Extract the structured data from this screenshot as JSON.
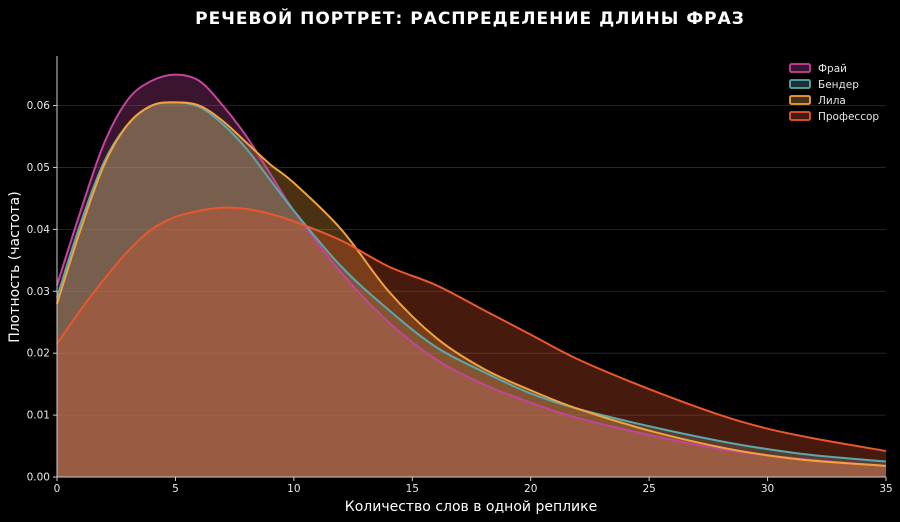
{
  "chart_data": {
    "type": "area",
    "title": "РЕЧЕВОЙ ПОРТРЕТ: РАСПРЕДЕЛЕНИЕ ДЛИНЫ ФРАЗ",
    "xlabel": "Количество слов в одной реплике",
    "ylabel": "Плотность (частота)",
    "xlim": [
      0,
      35
    ],
    "ylim": [
      0,
      0.068
    ],
    "xticks": [
      0,
      5,
      10,
      15,
      20,
      25,
      30,
      35
    ],
    "yticks": [
      0.0,
      0.01,
      0.02,
      0.03,
      0.04,
      0.05,
      0.06
    ],
    "ytick_labels": [
      "0.00",
      "0.01",
      "0.02",
      "0.03",
      "0.04",
      "0.05",
      "0.06"
    ],
    "grid": "horizontal",
    "legend_position": "top-right",
    "series": [
      {
        "name": "Фрай",
        "color": "#c2459a",
        "fill": "#c2459a",
        "x": [
          0,
          1,
          2,
          3,
          4,
          5,
          6,
          7,
          8,
          9,
          10,
          12,
          14,
          16,
          18,
          20,
          22,
          25,
          28,
          30,
          32,
          35
        ],
        "values": [
          0.031,
          0.043,
          0.054,
          0.061,
          0.064,
          0.065,
          0.064,
          0.06,
          0.055,
          0.049,
          0.043,
          0.033,
          0.025,
          0.019,
          0.015,
          0.012,
          0.0095,
          0.0068,
          0.0045,
          0.0035,
          0.0027,
          0.0018
        ]
      },
      {
        "name": "Бендер",
        "color": "#5aa8ad",
        "fill": "#5aa8ad",
        "x": [
          0,
          1,
          2,
          3,
          4,
          5,
          6,
          7,
          8,
          9,
          10,
          12,
          14,
          16,
          18,
          20,
          22,
          25,
          28,
          30,
          32,
          35
        ],
        "values": [
          0.029,
          0.041,
          0.051,
          0.057,
          0.06,
          0.0605,
          0.0598,
          0.057,
          0.053,
          0.048,
          0.043,
          0.034,
          0.027,
          0.021,
          0.017,
          0.0135,
          0.011,
          0.0082,
          0.0058,
          0.0045,
          0.0035,
          0.0025
        ]
      },
      {
        "name": "Лила",
        "color": "#f2a23c",
        "fill": "#f2a23c",
        "x": [
          0,
          1,
          2,
          3,
          4,
          5,
          6,
          7,
          8,
          9,
          10,
          12,
          14,
          16,
          18,
          20,
          22,
          25,
          28,
          30,
          32,
          35
        ],
        "values": [
          0.028,
          0.04,
          0.0505,
          0.057,
          0.06,
          0.0605,
          0.06,
          0.0575,
          0.054,
          0.0505,
          0.0475,
          0.04,
          0.03,
          0.0225,
          0.0175,
          0.014,
          0.011,
          0.0075,
          0.0048,
          0.0035,
          0.0026,
          0.0018
        ]
      },
      {
        "name": "Профессор",
        "color": "#e8582c",
        "fill": "#e8582c",
        "x": [
          0,
          1,
          2,
          3,
          4,
          5,
          6,
          7,
          8,
          9,
          10,
          12,
          14,
          16,
          18,
          20,
          22,
          25,
          28,
          30,
          32,
          35
        ],
        "values": [
          0.0215,
          0.027,
          0.032,
          0.0365,
          0.04,
          0.042,
          0.043,
          0.0435,
          0.0433,
          0.0425,
          0.0413,
          0.0382,
          0.034,
          0.031,
          0.027,
          0.023,
          0.019,
          0.0142,
          0.01,
          0.0078,
          0.0062,
          0.0042
        ]
      }
    ]
  }
}
